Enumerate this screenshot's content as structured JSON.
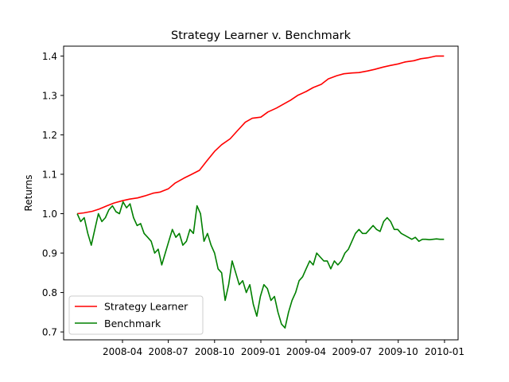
{
  "chart_data": {
    "type": "line",
    "title": "Strategy Learner v. Benchmark",
    "xlabel": "",
    "ylabel": "Returns",
    "x_range": [
      "2008-01-02",
      "2009-12-31"
    ],
    "xlim": [
      "2007-12-06",
      "2010-01-28"
    ],
    "ylim": [
      0.68,
      1.425
    ],
    "yticks": [
      0.7,
      0.8,
      0.9,
      1.0,
      1.1,
      1.2,
      1.3,
      1.4
    ],
    "ytick_labels": [
      "0.7",
      "0.8",
      "0.9",
      "1.0",
      "1.1",
      "1.2",
      "1.3",
      "1.4"
    ],
    "xticks": [
      "2008-04-01",
      "2008-07-01",
      "2008-10-01",
      "2009-01-01",
      "2009-04-01",
      "2009-07-01",
      "2009-10-01",
      "2010-01-01"
    ],
    "xtick_labels": [
      "2008-04",
      "2008-07",
      "2008-10",
      "2009-01",
      "2009-04",
      "2009-07",
      "2009-10",
      "2010-01"
    ],
    "grid": false,
    "legend_position": "lower-left",
    "series": [
      {
        "name": "Strategy Learner",
        "color": "#ff0000",
        "x": [
          "2008-01-02",
          "2008-01-15",
          "2008-02-01",
          "2008-02-15",
          "2008-03-01",
          "2008-03-15",
          "2008-04-01",
          "2008-04-15",
          "2008-05-01",
          "2008-05-15",
          "2008-06-01",
          "2008-06-15",
          "2008-07-01",
          "2008-07-15",
          "2008-08-01",
          "2008-08-15",
          "2008-09-01",
          "2008-09-15",
          "2008-10-01",
          "2008-10-15",
          "2008-11-01",
          "2008-11-15",
          "2008-12-01",
          "2008-12-15",
          "2009-01-01",
          "2009-01-15",
          "2009-02-01",
          "2009-02-15",
          "2009-03-01",
          "2009-03-15",
          "2009-04-01",
          "2009-04-15",
          "2009-05-01",
          "2009-05-15",
          "2009-06-01",
          "2009-06-15",
          "2009-07-01",
          "2009-07-15",
          "2009-08-01",
          "2009-08-15",
          "2009-09-01",
          "2009-09-15",
          "2009-10-01",
          "2009-10-15",
          "2009-11-01",
          "2009-11-15",
          "2009-12-01",
          "2009-12-15",
          "2009-12-31"
        ],
        "values": [
          1.0,
          1.002,
          1.006,
          1.012,
          1.02,
          1.027,
          1.033,
          1.037,
          1.04,
          1.045,
          1.052,
          1.055,
          1.063,
          1.078,
          1.09,
          1.099,
          1.11,
          1.133,
          1.158,
          1.175,
          1.19,
          1.21,
          1.232,
          1.242,
          1.245,
          1.258,
          1.268,
          1.278,
          1.288,
          1.3,
          1.31,
          1.32,
          1.328,
          1.342,
          1.35,
          1.355,
          1.357,
          1.358,
          1.362,
          1.366,
          1.372,
          1.376,
          1.38,
          1.385,
          1.388,
          1.393,
          1.396,
          1.4,
          1.4
        ]
      },
      {
        "name": "Benchmark",
        "color": "#008000",
        "x": [
          "2008-01-02",
          "2008-01-09",
          "2008-01-16",
          "2008-01-23",
          "2008-01-30",
          "2008-02-06",
          "2008-02-13",
          "2008-02-20",
          "2008-02-27",
          "2008-03-05",
          "2008-03-12",
          "2008-03-19",
          "2008-03-26",
          "2008-04-02",
          "2008-04-09",
          "2008-04-16",
          "2008-04-23",
          "2008-04-30",
          "2008-05-07",
          "2008-05-14",
          "2008-05-21",
          "2008-05-28",
          "2008-06-04",
          "2008-06-11",
          "2008-06-18",
          "2008-06-25",
          "2008-07-02",
          "2008-07-09",
          "2008-07-16",
          "2008-07-23",
          "2008-07-30",
          "2008-08-06",
          "2008-08-13",
          "2008-08-20",
          "2008-08-27",
          "2008-09-03",
          "2008-09-10",
          "2008-09-17",
          "2008-09-24",
          "2008-10-01",
          "2008-10-08",
          "2008-10-15",
          "2008-10-22",
          "2008-10-29",
          "2008-11-05",
          "2008-11-12",
          "2008-11-19",
          "2008-11-26",
          "2008-12-03",
          "2008-12-10",
          "2008-12-17",
          "2008-12-24",
          "2008-12-31",
          "2009-01-07",
          "2009-01-14",
          "2009-01-21",
          "2009-01-28",
          "2009-02-04",
          "2009-02-11",
          "2009-02-18",
          "2009-02-25",
          "2009-03-04",
          "2009-03-11",
          "2009-03-18",
          "2009-03-25",
          "2009-04-01",
          "2009-04-08",
          "2009-04-15",
          "2009-04-22",
          "2009-04-29",
          "2009-05-06",
          "2009-05-13",
          "2009-05-20",
          "2009-05-27",
          "2009-06-03",
          "2009-06-10",
          "2009-06-17",
          "2009-06-24",
          "2009-07-01",
          "2009-07-08",
          "2009-07-15",
          "2009-07-22",
          "2009-07-29",
          "2009-08-05",
          "2009-08-12",
          "2009-08-19",
          "2009-08-26",
          "2009-09-02",
          "2009-09-09",
          "2009-09-16",
          "2009-09-23",
          "2009-09-30",
          "2009-10-07",
          "2009-10-14",
          "2009-10-21",
          "2009-10-28",
          "2009-11-04",
          "2009-11-11",
          "2009-11-18",
          "2009-11-25",
          "2009-12-02",
          "2009-12-09",
          "2009-12-16",
          "2009-12-23",
          "2009-12-31"
        ],
        "values": [
          1.0,
          0.98,
          0.99,
          0.95,
          0.92,
          0.96,
          1.0,
          0.98,
          0.99,
          1.01,
          1.02,
          1.005,
          1.0,
          1.03,
          1.015,
          1.025,
          0.99,
          0.97,
          0.975,
          0.95,
          0.94,
          0.93,
          0.9,
          0.91,
          0.87,
          0.9,
          0.93,
          0.96,
          0.94,
          0.95,
          0.92,
          0.93,
          0.96,
          0.95,
          1.02,
          1.0,
          0.93,
          0.95,
          0.92,
          0.9,
          0.86,
          0.85,
          0.78,
          0.82,
          0.88,
          0.85,
          0.82,
          0.83,
          0.8,
          0.82,
          0.77,
          0.74,
          0.79,
          0.82,
          0.81,
          0.78,
          0.79,
          0.75,
          0.72,
          0.71,
          0.75,
          0.78,
          0.8,
          0.83,
          0.84,
          0.86,
          0.88,
          0.87,
          0.9,
          0.89,
          0.88,
          0.88,
          0.86,
          0.88,
          0.87,
          0.88,
          0.9,
          0.91,
          0.93,
          0.95,
          0.96,
          0.95,
          0.95,
          0.96,
          0.97,
          0.96,
          0.955,
          0.98,
          0.99,
          0.98,
          0.96,
          0.96,
          0.95,
          0.945,
          0.94,
          0.935,
          0.94,
          0.93,
          0.935,
          0.935,
          0.934,
          0.935,
          0.936,
          0.935,
          0.935
        ]
      }
    ]
  }
}
